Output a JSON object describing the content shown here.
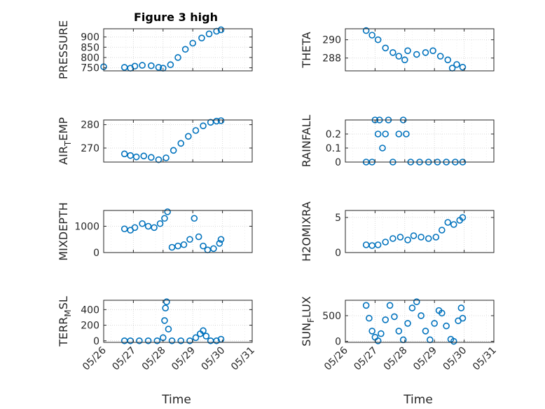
{
  "figure_title": "Figure 3 high",
  "colors": {
    "marker": "#0072BD",
    "axes": "#262626",
    "grid": "#d9d9d9",
    "background": "#ffffff"
  },
  "chart_data": [
    {
      "type": "scatter",
      "ylabel": "PRESSURE",
      "ylim": [
        735,
        940
      ],
      "yticks": [
        750,
        800,
        850,
        900
      ],
      "ytick_labels": [
        "750",
        "800",
        "850",
        "900"
      ],
      "xlim": [
        0,
        5
      ],
      "xticks": [
        0,
        1,
        2,
        3,
        4,
        5
      ],
      "xtick_labels": [
        "05/26",
        "05/27",
        "05/28",
        "05/29",
        "05/30",
        "05/31"
      ],
      "show_xticklabels": false,
      "grid": true,
      "points": [
        [
          0.0,
          755
        ],
        [
          0.7,
          752
        ],
        [
          0.9,
          748
        ],
        [
          1.05,
          758
        ],
        [
          1.3,
          762
        ],
        [
          1.6,
          760
        ],
        [
          1.85,
          752
        ],
        [
          2.0,
          748
        ],
        [
          2.25,
          765
        ],
        [
          2.5,
          800
        ],
        [
          2.75,
          840
        ],
        [
          3.0,
          870
        ],
        [
          3.3,
          895
        ],
        [
          3.55,
          915
        ],
        [
          3.8,
          928
        ],
        [
          3.95,
          935
        ]
      ]
    },
    {
      "type": "scatter",
      "ylabel": "THETA",
      "ylim": [
        286.6,
        291.2
      ],
      "yticks": [
        288,
        290
      ],
      "ytick_labels": [
        "288",
        "290"
      ],
      "xlim": [
        0,
        5
      ],
      "xticks": [
        0,
        1,
        2,
        3,
        4,
        5
      ],
      "xtick_labels": [
        "05/26",
        "05/27",
        "05/28",
        "05/29",
        "05/30",
        "05/31"
      ],
      "show_xticklabels": false,
      "grid": true,
      "points": [
        [
          0.7,
          291.0
        ],
        [
          0.9,
          290.5
        ],
        [
          1.1,
          290.0
        ],
        [
          1.35,
          289.1
        ],
        [
          1.6,
          288.6
        ],
        [
          1.8,
          288.2
        ],
        [
          2.0,
          287.8
        ],
        [
          2.1,
          288.8
        ],
        [
          2.4,
          288.4
        ],
        [
          2.7,
          288.6
        ],
        [
          2.95,
          288.8
        ],
        [
          3.2,
          288.2
        ],
        [
          3.45,
          287.8
        ],
        [
          3.6,
          286.9
        ],
        [
          3.75,
          287.3
        ],
        [
          3.95,
          287.0
        ]
      ]
    },
    {
      "type": "scatter",
      "ylabel": "AIR_TEMP",
      "ylim": [
        264,
        282
      ],
      "yticks": [
        270,
        280
      ],
      "ytick_labels": [
        "270",
        "280"
      ],
      "xlim": [
        0,
        5
      ],
      "xticks": [
        0,
        1,
        2,
        3,
        4,
        5
      ],
      "xtick_labels": [
        "05/26",
        "05/27",
        "05/28",
        "05/29",
        "05/30",
        "05/31"
      ],
      "show_xticklabels": false,
      "grid": true,
      "points": [
        [
          0.7,
          267.5
        ],
        [
          0.9,
          266.8
        ],
        [
          1.1,
          266.2
        ],
        [
          1.35,
          266.6
        ],
        [
          1.6,
          266.0
        ],
        [
          1.85,
          265.0
        ],
        [
          2.1,
          265.8
        ],
        [
          2.35,
          269.0
        ],
        [
          2.6,
          272.0
        ],
        [
          2.85,
          275.0
        ],
        [
          3.1,
          277.5
        ],
        [
          3.35,
          279.5
        ],
        [
          3.6,
          281.0
        ],
        [
          3.8,
          281.5
        ],
        [
          3.95,
          281.7
        ]
      ]
    },
    {
      "type": "scatter",
      "ylabel": "RAINFALL",
      "ylim": [
        0,
        0.3
      ],
      "yticks": [
        0,
        0.1,
        0.2
      ],
      "ytick_labels": [
        "0",
        "0.1",
        "0.2"
      ],
      "xlim": [
        0,
        5
      ],
      "xticks": [
        0,
        1,
        2,
        3,
        4,
        5
      ],
      "xtick_labels": [
        "05/26",
        "05/27",
        "05/28",
        "05/29",
        "05/30",
        "05/31"
      ],
      "show_xticklabels": false,
      "grid": true,
      "points": [
        [
          0.7,
          0
        ],
        [
          0.9,
          0
        ],
        [
          1.0,
          0.3
        ],
        [
          1.1,
          0.2
        ],
        [
          1.15,
          0.3
        ],
        [
          1.25,
          0.1
        ],
        [
          1.35,
          0.2
        ],
        [
          1.45,
          0.3
        ],
        [
          1.6,
          0
        ],
        [
          1.8,
          0.2
        ],
        [
          1.95,
          0.3
        ],
        [
          2.05,
          0.2
        ],
        [
          2.2,
          0
        ],
        [
          2.5,
          0
        ],
        [
          2.8,
          0
        ],
        [
          3.1,
          0
        ],
        [
          3.4,
          0
        ],
        [
          3.7,
          0
        ],
        [
          3.95,
          0
        ]
      ]
    },
    {
      "type": "scatter",
      "ylabel": "MIXDEPTH",
      "ylim": [
        0,
        1600
      ],
      "yticks": [
        0,
        1000
      ],
      "ytick_labels": [
        "0",
        "1000"
      ],
      "xlim": [
        0,
        5
      ],
      "xticks": [
        0,
        1,
        2,
        3,
        4,
        5
      ],
      "xtick_labels": [
        "05/26",
        "05/27",
        "05/28",
        "05/29",
        "05/30",
        "05/31"
      ],
      "show_xticklabels": false,
      "grid": true,
      "points": [
        [
          0.7,
          900
        ],
        [
          0.9,
          850
        ],
        [
          1.05,
          950
        ],
        [
          1.3,
          1100
        ],
        [
          1.5,
          1000
        ],
        [
          1.7,
          950
        ],
        [
          1.9,
          1100
        ],
        [
          2.05,
          1300
        ],
        [
          2.15,
          1550
        ],
        [
          2.3,
          200
        ],
        [
          2.5,
          250
        ],
        [
          2.7,
          300
        ],
        [
          2.9,
          500
        ],
        [
          3.05,
          1300
        ],
        [
          3.2,
          600
        ],
        [
          3.35,
          250
        ],
        [
          3.5,
          100
        ],
        [
          3.7,
          150
        ],
        [
          3.9,
          350
        ],
        [
          3.95,
          500
        ]
      ]
    },
    {
      "type": "scatter",
      "ylabel": "H2OMIXRA",
      "ylim": [
        0,
        6
      ],
      "yticks": [
        0,
        5
      ],
      "ytick_labels": [
        "0",
        "5"
      ],
      "xlim": [
        0,
        5
      ],
      "xticks": [
        0,
        1,
        2,
        3,
        4,
        5
      ],
      "xtick_labels": [
        "05/26",
        "05/27",
        "05/28",
        "05/29",
        "05/30",
        "05/31"
      ],
      "show_xticklabels": false,
      "grid": true,
      "points": [
        [
          0.7,
          1.1
        ],
        [
          0.9,
          1.0
        ],
        [
          1.1,
          1.1
        ],
        [
          1.35,
          1.5
        ],
        [
          1.6,
          2.0
        ],
        [
          1.85,
          2.2
        ],
        [
          2.1,
          1.8
        ],
        [
          2.3,
          2.4
        ],
        [
          2.55,
          2.2
        ],
        [
          2.8,
          2.0
        ],
        [
          3.05,
          2.2
        ],
        [
          3.25,
          3.2
        ],
        [
          3.45,
          4.3
        ],
        [
          3.65,
          4.0
        ],
        [
          3.85,
          4.6
        ],
        [
          3.95,
          5.0
        ]
      ]
    },
    {
      "type": "scatter",
      "ylabel": "TERR_MSL",
      "ylim": [
        -20,
        520
      ],
      "yticks": [
        0,
        200,
        400
      ],
      "ytick_labels": [
        "0",
        "200",
        "400"
      ],
      "xlim": [
        0,
        5
      ],
      "xticks": [
        0,
        1,
        2,
        3,
        4,
        5
      ],
      "xtick_labels": [
        "05/26",
        "05/27",
        "05/28",
        "05/29",
        "05/30",
        "05/31"
      ],
      "show_xticklabels": true,
      "xlabel": "Time",
      "grid": true,
      "points": [
        [
          0.7,
          0
        ],
        [
          0.9,
          0
        ],
        [
          1.2,
          0
        ],
        [
          1.5,
          0
        ],
        [
          1.8,
          0
        ],
        [
          2.0,
          40
        ],
        [
          2.05,
          260
        ],
        [
          2.08,
          420
        ],
        [
          2.12,
          500
        ],
        [
          2.18,
          150
        ],
        [
          2.3,
          0
        ],
        [
          2.6,
          0
        ],
        [
          2.9,
          0
        ],
        [
          3.1,
          40
        ],
        [
          3.25,
          90
        ],
        [
          3.35,
          130
        ],
        [
          3.45,
          60
        ],
        [
          3.6,
          0
        ],
        [
          3.8,
          0
        ],
        [
          3.95,
          20
        ]
      ]
    },
    {
      "type": "scatter",
      "ylabel": "SUN_FLUX",
      "ylim": [
        -20,
        800
      ],
      "yticks": [
        0,
        500
      ],
      "ytick_labels": [
        "0",
        "500"
      ],
      "xlim": [
        0,
        5
      ],
      "xticks": [
        0,
        1,
        2,
        3,
        4,
        5
      ],
      "xtick_labels": [
        "05/26",
        "05/27",
        "05/28",
        "05/29",
        "05/30",
        "05/31"
      ],
      "show_xticklabels": true,
      "xlabel": "Time",
      "grid": true,
      "points": [
        [
          0.7,
          700
        ],
        [
          0.8,
          450
        ],
        [
          0.9,
          200
        ],
        [
          1.0,
          80
        ],
        [
          1.1,
          10
        ],
        [
          1.2,
          150
        ],
        [
          1.35,
          420
        ],
        [
          1.5,
          700
        ],
        [
          1.65,
          480
        ],
        [
          1.8,
          200
        ],
        [
          1.95,
          30
        ],
        [
          2.1,
          350
        ],
        [
          2.25,
          650
        ],
        [
          2.4,
          770
        ],
        [
          2.55,
          500
        ],
        [
          2.7,
          200
        ],
        [
          2.85,
          30
        ],
        [
          3.0,
          350
        ],
        [
          3.15,
          600
        ],
        [
          3.25,
          550
        ],
        [
          3.4,
          300
        ],
        [
          3.55,
          40
        ],
        [
          3.65,
          0
        ],
        [
          3.8,
          400
        ],
        [
          3.9,
          650
        ],
        [
          3.95,
          450
        ]
      ]
    }
  ]
}
